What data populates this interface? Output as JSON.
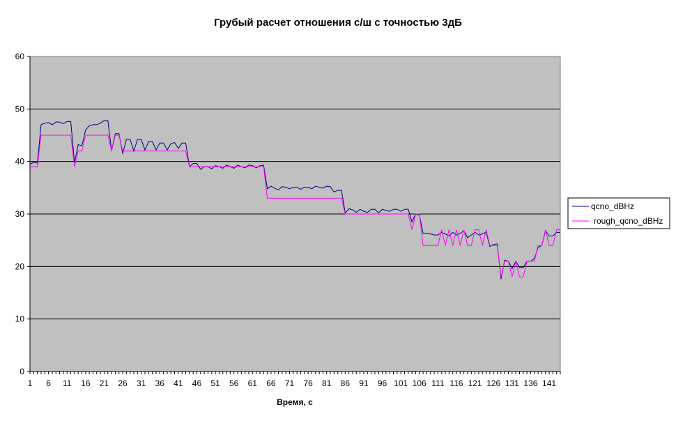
{
  "chart_data": {
    "type": "line",
    "title": "Грубый расчет отношения с/ш с точностью 3дБ",
    "xlabel": "Время, с",
    "ylabel": "",
    "ylim": [
      0,
      60
    ],
    "yticks": [
      "0",
      "10",
      "20",
      "30",
      "40",
      "50",
      "60"
    ],
    "xticks": [
      "1",
      "6",
      "11",
      "16",
      "21",
      "26",
      "31",
      "36",
      "41",
      "46",
      "51",
      "56",
      "61",
      "66",
      "71",
      "76",
      "81",
      "86",
      "91",
      "96",
      "101",
      "106",
      "111",
      "116",
      "121",
      "126",
      "131",
      "136",
      "141"
    ],
    "grid": true,
    "legend_position": "right",
    "x_start": 1,
    "series": [
      {
        "name": "qcno_dBHz",
        "color": "#000080",
        "values": [
          39.5,
          39.8,
          39.7,
          47.0,
          47.3,
          47.4,
          47.0,
          47.5,
          47.5,
          47.2,
          47.6,
          47.6,
          39.8,
          43.2,
          43.0,
          46.0,
          46.8,
          47.0,
          47.0,
          47.3,
          47.8,
          47.8,
          42.0,
          45.3,
          45.3,
          41.5,
          44.2,
          44.2,
          42.0,
          44.2,
          44.2,
          42.2,
          43.8,
          43.8,
          42.2,
          43.5,
          43.5,
          42.2,
          43.4,
          43.6,
          42.5,
          43.5,
          43.5,
          39.0,
          39.6,
          39.6,
          38.5,
          39.0,
          39.0,
          38.6,
          39.2,
          39.0,
          38.7,
          39.3,
          39.0,
          38.7,
          39.3,
          39.0,
          38.8,
          39.3,
          39.2,
          38.8,
          39.2,
          39.3,
          34.8,
          35.3,
          34.9,
          34.6,
          35.2,
          35.1,
          34.8,
          35.1,
          35.1,
          34.7,
          35.1,
          35.1,
          34.8,
          35.3,
          35.1,
          34.9,
          35.3,
          35.2,
          34.2,
          34.5,
          34.5,
          30.2,
          31.0,
          30.8,
          30.3,
          30.9,
          30.5,
          30.3,
          30.9,
          30.9,
          30.2,
          30.9,
          30.7,
          30.5,
          30.9,
          30.9,
          30.5,
          30.9,
          30.9,
          28.5,
          30.0,
          29.8,
          26.3,
          26.3,
          26.2,
          26.0,
          26.0,
          26.5,
          26.2,
          25.8,
          26.5,
          26.0,
          26.3,
          26.8,
          25.5,
          26.0,
          26.5,
          26.0,
          26.2,
          26.6,
          23.8,
          24.2,
          24.3,
          17.6,
          21.2,
          21.0,
          19.6,
          21.0,
          19.8,
          19.8,
          21.0,
          21.0,
          21.5,
          23.6,
          24.0,
          26.8,
          25.8,
          25.8,
          26.5,
          26.5
        ]
      },
      {
        "name": "rough_qcno_dBHz",
        "color": "#FF00FF",
        "values": [
          39,
          39,
          39,
          45,
          45,
          45,
          45,
          45,
          45,
          45,
          45,
          45,
          39,
          42,
          42,
          45,
          45,
          45,
          45,
          45,
          45,
          45,
          42,
          45,
          45,
          42,
          42,
          42,
          42,
          42,
          42,
          42,
          42,
          42,
          42,
          42,
          42,
          42,
          42,
          42,
          42,
          42,
          42,
          39,
          39,
          39,
          39,
          39,
          39,
          39,
          39,
          39,
          39,
          39,
          39,
          39,
          39,
          39,
          39,
          39,
          39,
          39,
          39,
          39,
          33,
          33,
          33,
          33,
          33,
          33,
          33,
          33,
          33,
          33,
          33,
          33,
          33,
          33,
          33,
          33,
          33,
          33,
          33,
          33,
          33,
          30,
          30,
          30,
          30,
          30,
          30,
          30,
          30,
          30,
          30,
          30,
          30,
          30,
          30,
          30,
          30,
          30,
          30,
          27,
          30,
          30,
          24,
          24,
          24,
          24,
          24,
          27,
          24,
          27,
          24,
          27,
          24,
          27,
          24,
          24,
          27,
          27,
          24,
          27,
          24,
          24,
          24,
          18,
          21,
          21,
          18,
          21,
          18,
          18,
          21,
          21,
          21,
          24,
          24,
          27,
          24,
          24,
          27,
          27
        ]
      }
    ]
  }
}
